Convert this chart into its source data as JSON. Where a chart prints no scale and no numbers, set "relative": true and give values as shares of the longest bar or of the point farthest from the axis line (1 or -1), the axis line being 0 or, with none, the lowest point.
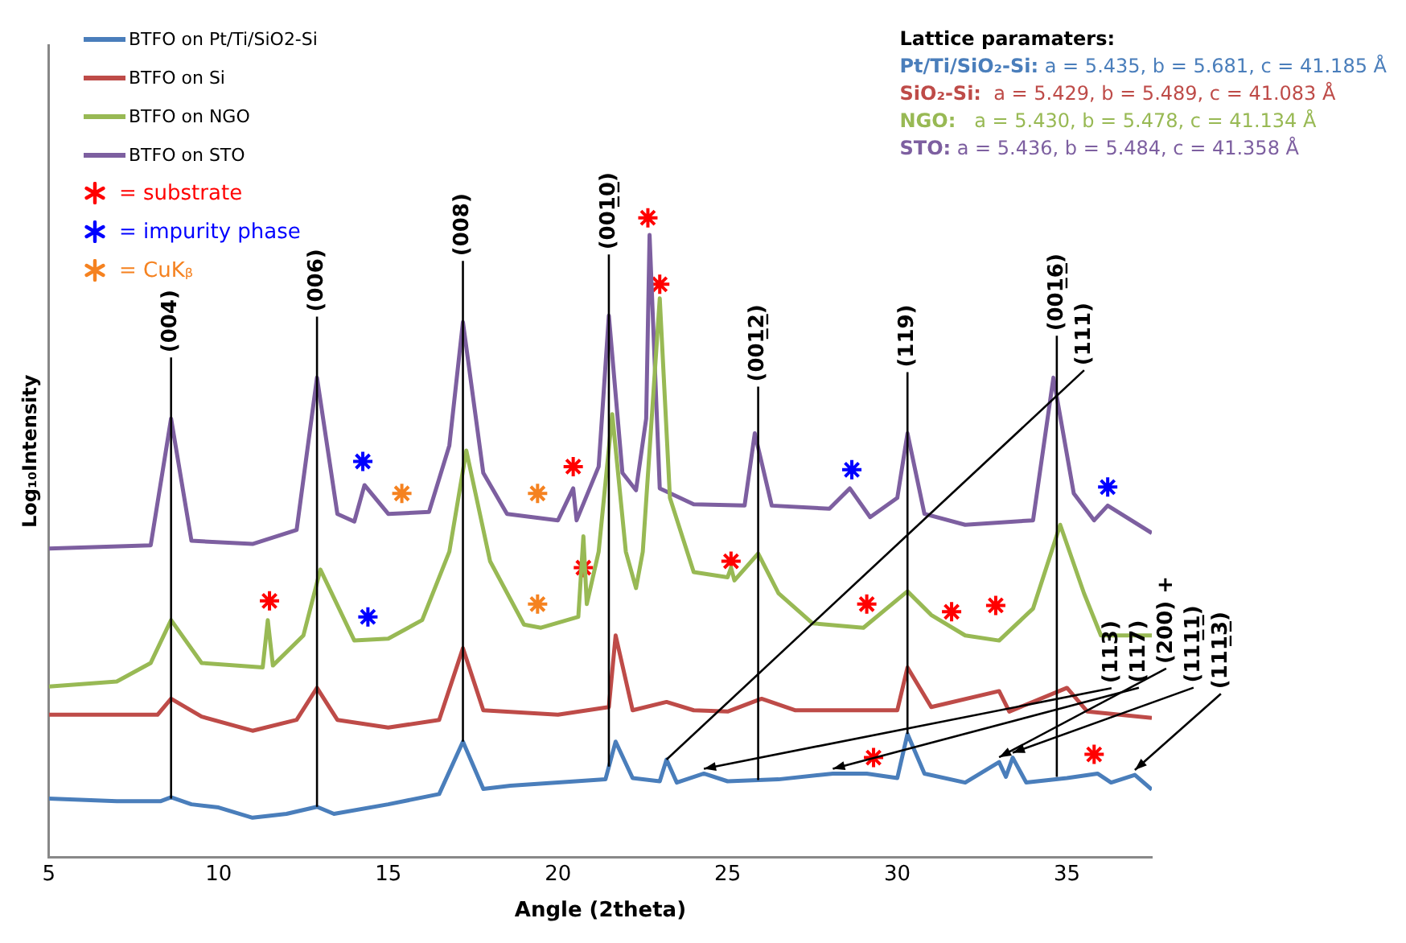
{
  "chart_data": {
    "type": "line",
    "relative": true,
    "xlabel": "Angle (2theta)",
    "ylabel": "Log₁₀Intensity",
    "xlim": [
      5,
      37.5
    ],
    "xticks": [
      5,
      10,
      15,
      20,
      25,
      30,
      35
    ],
    "legend": "top left",
    "marker": "none",
    "series": [
      {
        "name": "BTFO on Pt/Ti/SiO2-Si",
        "color": "#4a7ebb",
        "x": [
          5,
          7,
          8.3,
          8.6,
          9.2,
          10,
          11,
          12,
          12.9,
          13.4,
          15,
          16.5,
          17.2,
          17.8,
          18.6,
          20,
          21.4,
          21.7,
          22.2,
          23,
          23.2,
          23.5,
          24.3,
          25,
          26.5,
          28.1,
          29.1,
          30,
          30.3,
          30.8,
          32,
          33,
          33.2,
          33.4,
          33.8,
          35,
          35.9,
          36.3,
          37,
          37.5
        ],
        "values": [
          0.092,
          0.088,
          0.088,
          0.094,
          0.083,
          0.078,
          0.062,
          0.068,
          0.079,
          0.068,
          0.083,
          0.099,
          0.181,
          0.107,
          0.112,
          0.117,
          0.122,
          0.181,
          0.124,
          0.119,
          0.153,
          0.117,
          0.131,
          0.119,
          0.122,
          0.131,
          0.131,
          0.124,
          0.193,
          0.131,
          0.117,
          0.149,
          0.126,
          0.156,
          0.117,
          0.124,
          0.131,
          0.117,
          0.129,
          0.106
        ]
      },
      {
        "name": "BTFO on Si",
        "color": "#be4b48",
        "x": [
          5,
          8.2,
          8.6,
          9.5,
          11,
          12.3,
          12.9,
          13.5,
          15,
          16.5,
          17.2,
          17.8,
          20,
          21.5,
          21.7,
          22.2,
          23.2,
          24,
          25,
          26,
          27,
          30,
          30.3,
          31,
          33,
          33.3,
          35,
          35.6,
          37.5
        ],
        "values": [
          0.223,
          0.223,
          0.248,
          0.22,
          0.198,
          0.215,
          0.265,
          0.215,
          0.203,
          0.215,
          0.327,
          0.23,
          0.223,
          0.235,
          0.347,
          0.23,
          0.243,
          0.23,
          0.228,
          0.248,
          0.23,
          0.23,
          0.297,
          0.235,
          0.26,
          0.228,
          0.265,
          0.228,
          0.218
        ]
      },
      {
        "name": "BTFO on NGO",
        "color": "#98b954",
        "x": [
          5,
          7,
          8,
          8.6,
          9.5,
          11.3,
          11.45,
          11.6,
          12.5,
          13,
          14,
          15,
          16,
          16.8,
          17.3,
          18,
          19,
          19.5,
          20.6,
          20.75,
          20.85,
          21.2,
          21.6,
          22,
          22.3,
          22.5,
          23,
          23.3,
          24,
          25,
          25.1,
          25.2,
          25.9,
          26.5,
          27.5,
          29,
          30.3,
          31,
          32,
          33,
          34,
          34.8,
          35.5,
          36,
          37.5
        ],
        "values": [
          0.267,
          0.275,
          0.304,
          0.371,
          0.304,
          0.297,
          0.371,
          0.3,
          0.347,
          0.45,
          0.339,
          0.342,
          0.371,
          0.478,
          0.636,
          0.463,
          0.364,
          0.359,
          0.376,
          0.502,
          0.396,
          0.478,
          0.693,
          0.478,
          0.421,
          0.478,
          0.874,
          0.562,
          0.446,
          0.438,
          0.453,
          0.433,
          0.475,
          0.413,
          0.366,
          0.359,
          0.416,
          0.379,
          0.347,
          0.339,
          0.389,
          0.52,
          0.413,
          0.347,
          0.347
        ]
      },
      {
        "name": "BTFO on STO",
        "color": "#7d5fa0",
        "x": [
          5,
          8,
          8.6,
          9.2,
          11,
          12.3,
          12.9,
          13.5,
          14,
          14.3,
          15,
          16.2,
          16.8,
          17.2,
          17.8,
          18.5,
          20,
          20.45,
          20.55,
          21.2,
          21.5,
          21.9,
          22.3,
          22.6,
          22.7,
          23,
          24,
          25.5,
          25.8,
          26.3,
          28,
          28.6,
          29.2,
          30,
          30.3,
          30.8,
          32,
          34,
          34.6,
          35.2,
          35.8,
          36.2,
          37.5
        ],
        "values": [
          0.483,
          0.488,
          0.686,
          0.495,
          0.49,
          0.512,
          0.75,
          0.537,
          0.525,
          0.582,
          0.537,
          0.54,
          0.644,
          0.837,
          0.601,
          0.537,
          0.527,
          0.577,
          0.527,
          0.611,
          0.847,
          0.601,
          0.574,
          0.686,
          0.973,
          0.577,
          0.552,
          0.55,
          0.663,
          0.55,
          0.545,
          0.577,
          0.532,
          0.562,
          0.663,
          0.537,
          0.52,
          0.527,
          0.75,
          0.569,
          0.527,
          0.55,
          0.507
        ]
      },
      {
        "name": "= substrate",
        "type": "scatter",
        "marker": "cross",
        "color": "#ff0000",
        "x": [
          11.5,
          20.45,
          20.75,
          22.65,
          23.0,
          25.1,
          29.1,
          29.3,
          31.6,
          32.9,
          35.8
        ],
        "values": [
          0.401,
          0.611,
          0.453,
          1.0,
          0.896,
          0.463,
          0.396,
          0.156,
          0.384,
          0.394,
          0.161
        ]
      },
      {
        "name": "= impurity phase",
        "type": "scatter",
        "marker": "cross",
        "color": "#0000ff",
        "x": [
          14.25,
          14.4,
          28.66,
          36.2
        ],
        "values": [
          0.619,
          0.376,
          0.606,
          0.579
        ]
      },
      {
        "name": "= CuKᵦ",
        "type": "scatter",
        "marker": "cross",
        "color": "#f58220",
        "x": [
          15.4,
          19.4,
          19.4
        ],
        "values": [
          0.569,
          0.569,
          0.396
        ]
      }
    ],
    "annotations": [
      {
        "text": "(004)",
        "x": 8.6,
        "y": 0.092
      },
      {
        "text": "(006)",
        "x": 12.9,
        "y": 0.079
      },
      {
        "text": "(008)",
        "x": 17.2,
        "y": 0.181
      },
      {
        "text": "(001̲0̲)",
        "x": 21.5,
        "y": 0.142
      },
      {
        "text": "(001̲2̲)",
        "x": 25.9,
        "y": 0.121
      },
      {
        "text": "(119)",
        "x": 30.3,
        "y": 0.193
      },
      {
        "text": "(001̲6̲)",
        "x": 34.7,
        "y": 0.126
      },
      {
        "text": "(111)",
        "x": 23.2,
        "y": 0.153
      },
      {
        "text": "(113)",
        "x": 24.3,
        "y": 0.131
      },
      {
        "text": "(117)",
        "x": 28.1,
        "y": 0.131
      },
      {
        "text": "(200) +",
        "x": 33.0,
        "y": 0.149
      },
      {
        "text": "(111̲1̲)",
        "x": 33.4,
        "y": 0.156
      },
      {
        "text": "(111̲3̲)",
        "x": 37.0,
        "y": 0.129
      },
      "Lattice paramaters:",
      "Pt/Ti/SiO₂-Si: a = 5.435, b = 5.681, c = 41.185 Å",
      "SiO₂-Si:  a = 5.429, b = 5.489, c = 41.083 Å",
      "NGO:   a = 5.430, b = 5.478, c = 41.134 Å",
      "STO: a = 5.436, b = 5.484, c = 41.358 Å"
    ]
  }
}
